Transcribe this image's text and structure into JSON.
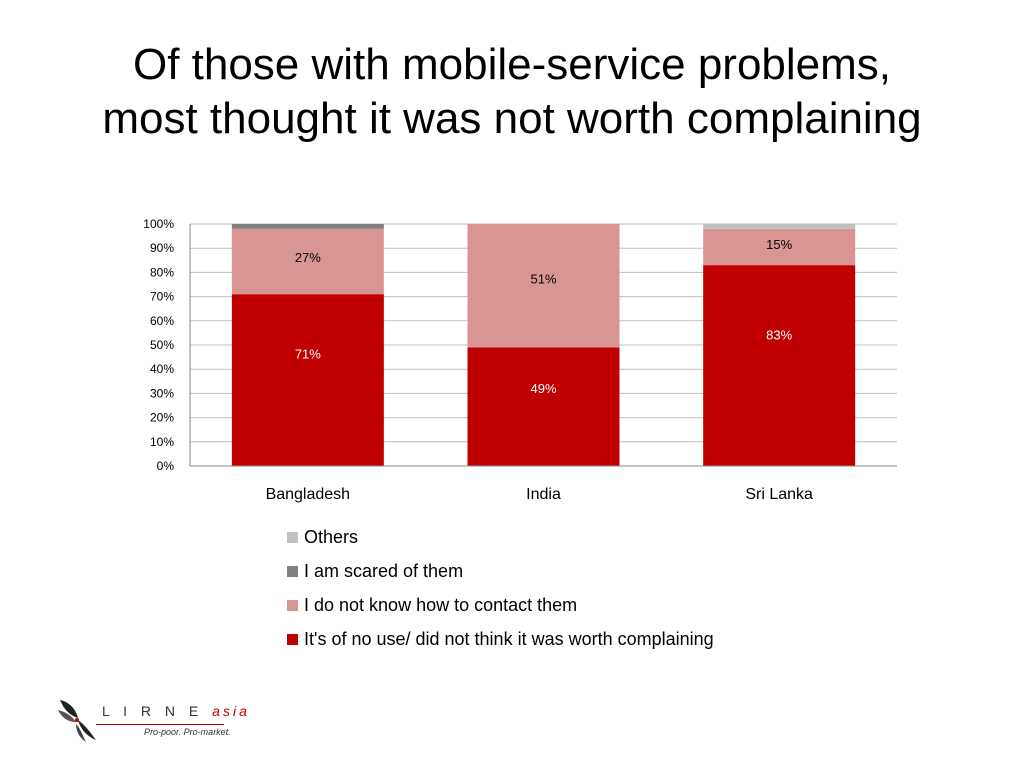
{
  "slide": {
    "title_line1": "Of those with mobile-service problems,",
    "title_line2": "most thought it was not worth complaining"
  },
  "chart_data": {
    "type": "bar",
    "stacked": true,
    "categories": [
      "Bangladesh",
      "India",
      "Sri Lanka"
    ],
    "y_ticks": [
      "0%",
      "10%",
      "20%",
      "30%",
      "40%",
      "50%",
      "60%",
      "70%",
      "80%",
      "90%",
      "100%"
    ],
    "ylim": [
      0,
      100
    ],
    "grid": true,
    "series": [
      {
        "name": "It's of no use/ did not think it was worth complaining",
        "color": "#c00000",
        "label_color": "#ffffff",
        "values": [
          71,
          49,
          83
        ],
        "labels": [
          "71%",
          "49%",
          "83%"
        ]
      },
      {
        "name": "I do not know how to contact them",
        "color": "#d99594",
        "label_color": "#000000",
        "values": [
          27,
          51,
          15
        ],
        "labels": [
          "27%",
          "51%",
          "15%"
        ]
      },
      {
        "name": "I am scared of them",
        "color": "#808080",
        "label_color": "#000000",
        "values": [
          2,
          0,
          0
        ],
        "labels": [
          "",
          "",
          ""
        ]
      },
      {
        "name": "Others",
        "color": "#bfbfbf",
        "label_color": "#000000",
        "values": [
          0,
          0,
          2
        ],
        "labels": [
          "",
          "",
          ""
        ]
      }
    ],
    "legend_position": "bottom",
    "legend_order": [
      "Others",
      "I am scared of them",
      "I do not know how to contact them",
      "It's of no use/ did not think it was worth complaining"
    ]
  },
  "legend": [
    {
      "label": "Others",
      "color": "#bfbfbf"
    },
    {
      "label": "I am scared of them",
      "color": "#808080"
    },
    {
      "label": "I do not know how to contact them",
      "color": "#d99594"
    },
    {
      "label": "It's of no use/ did not think it was worth complaining",
      "color": "#c00000"
    }
  ],
  "logo": {
    "name_main": "L I R N E",
    "name_suffix": "asia",
    "tagline": "Pro-poor. Pro-market."
  }
}
